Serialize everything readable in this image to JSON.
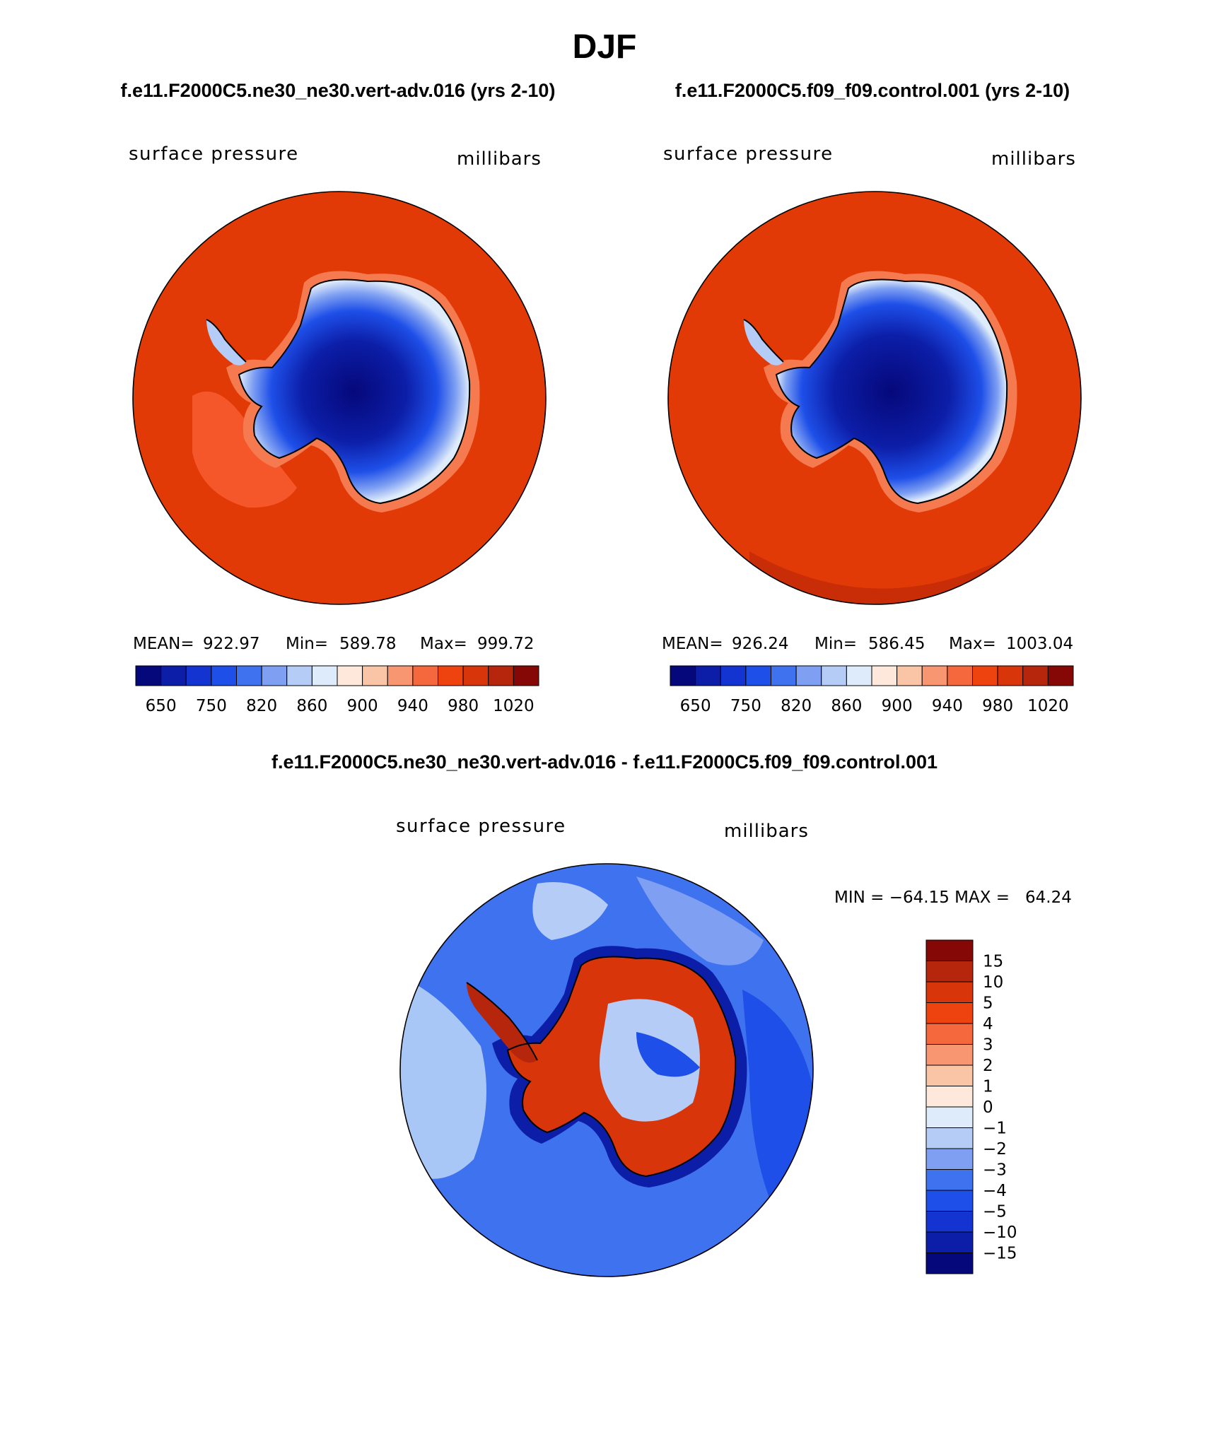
{
  "page_title": "DJF",
  "colors": {
    "ocean_red": "#e23a06",
    "land_outline": "#000000",
    "diff_ocean_mid": "#4a7ef0",
    "diff_ocean_light": "#a9c7f6"
  },
  "panels": [
    {
      "case_title": "f.e11.F2000C5.ne30_ne30.vert-adv.016 (yrs 2-10)",
      "variable": "surface pressure",
      "units": "millibars",
      "stats": {
        "mean_label": "MEAN=",
        "mean": "922.97",
        "min_label": "Min=",
        "min": "589.78",
        "max_label": "Max=",
        "max": "999.72"
      },
      "colorbar_labels": [
        "650",
        "750",
        "820",
        "860",
        "900",
        "940",
        "980",
        "1020"
      ]
    },
    {
      "case_title": "f.e11.F2000C5.f09_f09.control.001 (yrs 2-10)",
      "variable": "surface pressure",
      "units": "millibars",
      "stats": {
        "mean_label": "MEAN=",
        "mean": "926.24",
        "min_label": "Min=",
        "min": "586.45",
        "max_label": "Max=",
        "max": "1003.04"
      },
      "colorbar_labels": [
        "650",
        "750",
        "820",
        "860",
        "900",
        "940",
        "980",
        "1020"
      ]
    }
  ],
  "diff_panel": {
    "title": "f.e11.F2000C5.ne30_ne30.vert-adv.016 - f.e11.F2000C5.f09_f09.control.001",
    "variable": "surface pressure",
    "units": "millibars",
    "minmax": "MIN = −64.15 MAX =   64.24",
    "colorbar_labels": [
      "15",
      "10",
      "5",
      "4",
      "3",
      "2",
      "1",
      "0",
      "−1",
      "−2",
      "−3",
      "−4",
      "−5",
      "−10",
      "−15"
    ]
  },
  "abs_colorbar_colors": [
    "#05087a",
    "#0c1ea8",
    "#1434d2",
    "#1e4fe8",
    "#3f72ee",
    "#7e9ff2",
    "#b5ccf6",
    "#deebfa",
    "#fde8db",
    "#fac4a6",
    "#f89672",
    "#f5683d",
    "#ee430f",
    "#d8350a",
    "#b6260c",
    "#850806"
  ],
  "diff_colorbar_colors": [
    "#850806",
    "#b6260c",
    "#d8350a",
    "#ee430f",
    "#f5683d",
    "#f89672",
    "#fac4a6",
    "#fde8db",
    "#deebfa",
    "#b5ccf6",
    "#7e9ff2",
    "#3f72ee",
    "#1e4fe8",
    "#1434d2",
    "#0c1ea8",
    "#05087a"
  ]
}
